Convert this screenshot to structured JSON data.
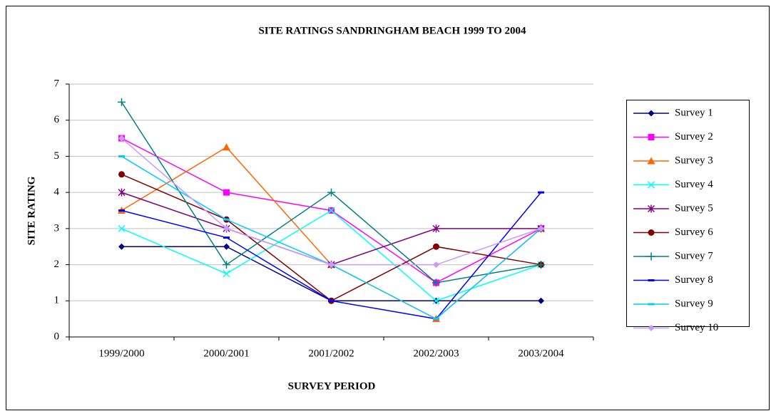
{
  "chart_data": {
    "type": "line",
    "title": "SITE RATINGS SANDRINGHAM BEACH 1999 TO 2004",
    "x_label": "SURVEY PERIOD",
    "y_label": "SITE RATING",
    "categories": [
      "1999/2000",
      "2000/2001",
      "2001/2002",
      "2002/2003",
      "2003/2004"
    ],
    "ylim": [
      0,
      7
    ],
    "yticks": [
      0,
      1,
      2,
      3,
      4,
      5,
      6,
      7
    ],
    "grid": true,
    "legend": "right",
    "series": [
      {
        "name": "Survey 1",
        "color": "#000080",
        "marker": "diamond",
        "values": [
          2.5,
          2.5,
          1,
          1,
          1
        ]
      },
      {
        "name": "Survey 2",
        "color": "#FF00FF",
        "marker": "square",
        "values": [
          5.5,
          4,
          3.5,
          1.5,
          3
        ]
      },
      {
        "name": "Survey 3",
        "color": "#FF6600",
        "marker": "triangle",
        "values": [
          3.5,
          5.25,
          2,
          0.5,
          3
        ]
      },
      {
        "name": "Survey 4",
        "color": "#00FFFF",
        "marker": "x",
        "values": [
          3,
          1.75,
          3.5,
          1,
          2
        ]
      },
      {
        "name": "Survey 5",
        "color": "#800080",
        "marker": "star",
        "values": [
          4,
          3,
          2,
          3,
          3
        ]
      },
      {
        "name": "Survey 6",
        "color": "#800000",
        "marker": "circle",
        "values": [
          4.5,
          3.25,
          1,
          2.5,
          2
        ]
      },
      {
        "name": "Survey 7",
        "color": "#008080",
        "marker": "plus",
        "values": [
          6.5,
          2,
          4,
          1.5,
          2
        ]
      },
      {
        "name": "Survey 8",
        "color": "#0000FF",
        "marker": "dash",
        "values": [
          3.5,
          2.75,
          1,
          0.5,
          4
        ]
      },
      {
        "name": "Survey 9",
        "color": "#00CCFF",
        "marker": "dash",
        "values": [
          5,
          3.25,
          2,
          0.5,
          3
        ]
      },
      {
        "name": "Survey 10",
        "color": "#CC99FF",
        "marker": "diamond",
        "values": [
          5.5,
          3,
          2,
          2,
          3
        ]
      }
    ]
  }
}
